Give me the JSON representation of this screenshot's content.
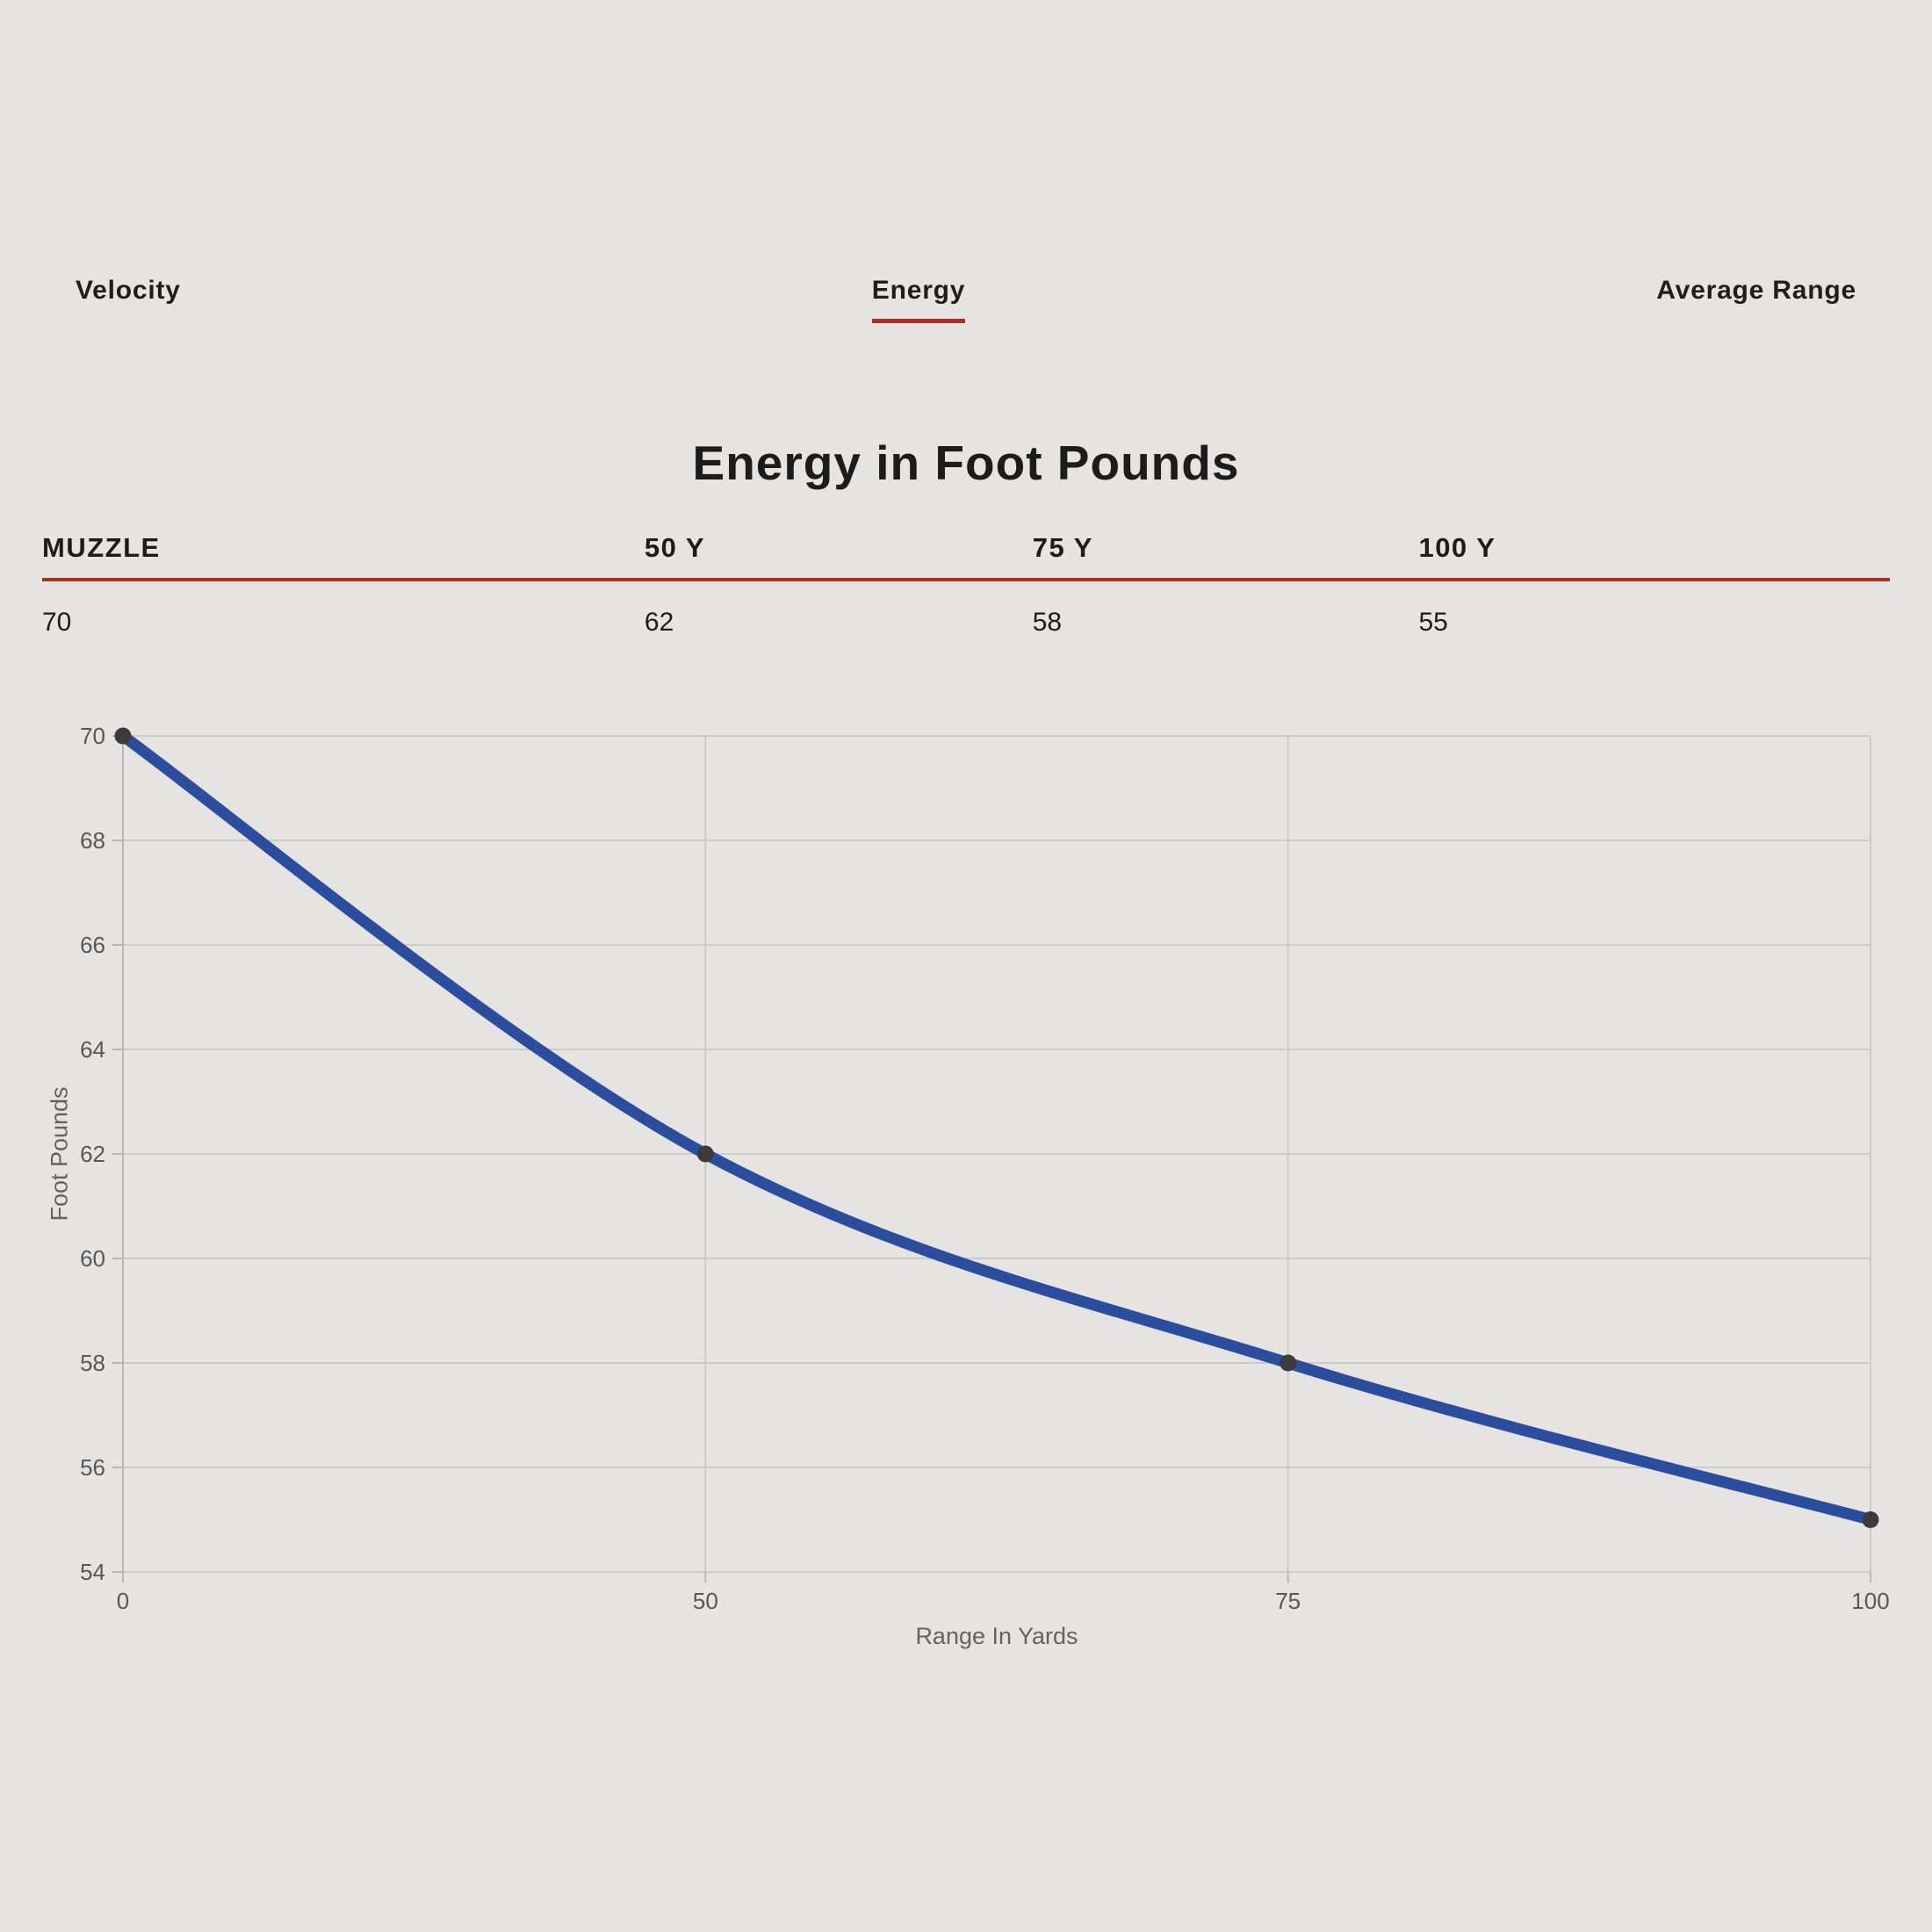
{
  "tabs": [
    {
      "label": "Velocity",
      "active": false
    },
    {
      "label": "Energy",
      "active": true
    },
    {
      "label": "Average Range",
      "active": false
    }
  ],
  "title": "Energy in Foot Pounds",
  "table": {
    "headers": [
      "MUZZLE",
      "50 Y",
      "75 Y",
      "100 Y"
    ],
    "values": [
      "70",
      "62",
      "58",
      "55"
    ]
  },
  "chart_data": {
    "type": "line",
    "categories": [
      "0",
      "50",
      "75",
      "100"
    ],
    "values": [
      70,
      62,
      58,
      55
    ],
    "series": [
      {
        "name": "Energy",
        "values": [
          70,
          62,
          58,
          55
        ]
      }
    ],
    "title": "Energy in Foot Pounds",
    "xlabel": "Range In Yards",
    "ylabel": "Foot Pounds",
    "ylim": [
      54,
      70
    ],
    "yticks": [
      70,
      68,
      66,
      64,
      62,
      60,
      58,
      56,
      54
    ],
    "x_spacing": "equal-categorical",
    "grid": true,
    "legend": "none",
    "line_color": "#2c4d9e",
    "point_color": "#3b3b3d",
    "grid_color": "#cbcbca",
    "axis_color": "#b5b5b4",
    "tick_text_color": "#565759"
  },
  "colors": {
    "background": "#e5e4e3",
    "accent_red": "#aa3022",
    "text_dark": "#1c1c1c",
    "axis_label_gray": "#636363"
  }
}
